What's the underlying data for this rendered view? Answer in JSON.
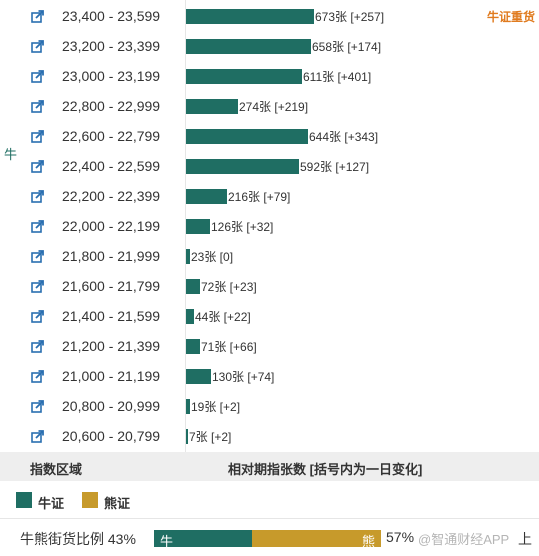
{
  "side_label": "牛",
  "top_tag": "牛证重货",
  "max_count": 673,
  "rows": [
    {
      "range": "23,400 - 23,599",
      "count": 673,
      "value_label": "673张 [+257]"
    },
    {
      "range": "23,200 - 23,399",
      "count": 658,
      "value_label": "658张 [+174]"
    },
    {
      "range": "23,000 - 23,199",
      "count": 611,
      "value_label": "611张 [+401]"
    },
    {
      "range": "22,800 - 22,999",
      "count": 274,
      "value_label": "274张 [+219]"
    },
    {
      "range": "22,600 - 22,799",
      "count": 644,
      "value_label": "644张 [+343]"
    },
    {
      "range": "22,400 - 22,599",
      "count": 592,
      "value_label": "592张 [+127]"
    },
    {
      "range": "22,200 - 22,399",
      "count": 216,
      "value_label": "216张 [+79]"
    },
    {
      "range": "22,000 - 22,199",
      "count": 126,
      "value_label": "126张 [+32]"
    },
    {
      "range": "21,800 - 21,999",
      "count": 23,
      "value_label": "23张 [0]"
    },
    {
      "range": "21,600 - 21,799",
      "count": 72,
      "value_label": "72张 [+23]"
    },
    {
      "range": "21,400 - 21,599",
      "count": 44,
      "value_label": "44张 [+22]"
    },
    {
      "range": "21,200 - 21,399",
      "count": 71,
      "value_label": "71张 [+66]"
    },
    {
      "range": "21,000 - 21,199",
      "count": 130,
      "value_label": "130张 [+74]"
    },
    {
      "range": "20,800 - 20,999",
      "count": 19,
      "value_label": "19张 [+2]"
    },
    {
      "range": "20,600 - 20,799",
      "count": 7,
      "value_label": "7张 [+2]"
    }
  ],
  "header": {
    "col1": "指数区域",
    "col2": "相对期指张数 [括号内为一日变化]"
  },
  "legend": {
    "bull": "牛证",
    "bear": "熊证"
  },
  "colors": {
    "bull": "#1f6e63",
    "bear": "#c79a2b",
    "tag": "#e07b1f"
  },
  "ratio": {
    "label": "牛熊街货比例 43%",
    "bull_fraction": 0.43,
    "bull_short": "牛",
    "bear_short": "熊",
    "bear_pct": "57%",
    "watermark": "@智通财经APP",
    "tail": "上"
  }
}
